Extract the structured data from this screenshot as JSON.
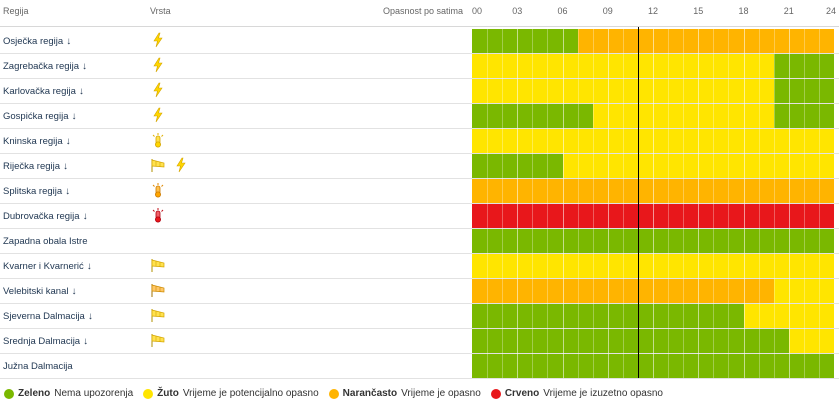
{
  "header": {
    "region_label": "Regija",
    "type_label": "Vrsta",
    "hours_label": "Opasnost po satima",
    "hours": [
      "00",
      "03",
      "06",
      "09",
      "12",
      "15",
      "18",
      "21",
      "24"
    ]
  },
  "colors": {
    "green": "#7ab800",
    "yellow": "#ffe500",
    "orange": "#ffb400",
    "red": "#e8171b"
  },
  "rows": [
    {
      "name": "Osječka regija",
      "arrow": "↓",
      "icons": [
        "lightning-icon"
      ],
      "hazard": [
        {
          "from": 0,
          "to": 7,
          "level": "green"
        },
        {
          "from": 7,
          "to": 24,
          "level": "orange"
        }
      ]
    },
    {
      "name": "Zagrebačka regija",
      "arrow": "↓",
      "icons": [
        "lightning-icon"
      ],
      "hazard": [
        {
          "from": 0,
          "to": 20,
          "level": "yellow"
        },
        {
          "from": 20,
          "to": 24,
          "level": "green"
        }
      ]
    },
    {
      "name": "Karlovačka regija",
      "arrow": "↓",
      "icons": [
        "lightning-icon"
      ],
      "hazard": [
        {
          "from": 0,
          "to": 20,
          "level": "yellow"
        },
        {
          "from": 20,
          "to": 24,
          "level": "green"
        }
      ]
    },
    {
      "name": "Gospićka regija",
      "arrow": "↓",
      "icons": [
        "lightning-icon"
      ],
      "hazard": [
        {
          "from": 0,
          "to": 8,
          "level": "green"
        },
        {
          "from": 8,
          "to": 20,
          "level": "yellow"
        },
        {
          "from": 20,
          "to": 24,
          "level": "green"
        }
      ]
    },
    {
      "name": "Kninska regija",
      "arrow": "↓",
      "icons": [
        "heat-icon"
      ],
      "hazard": [
        {
          "from": 0,
          "to": 24,
          "level": "yellow"
        }
      ]
    },
    {
      "name": "Riječka regija",
      "arrow": "↓",
      "icons": [
        "wind-icon",
        "lightning-icon"
      ],
      "hazard": [
        {
          "from": 0,
          "to": 6,
          "level": "green"
        },
        {
          "from": 6,
          "to": 24,
          "level": "yellow"
        }
      ]
    },
    {
      "name": "Splitska regija",
      "arrow": "↓",
      "icons": [
        "heat-orange-icon"
      ],
      "hazard": [
        {
          "from": 0,
          "to": 24,
          "level": "orange"
        }
      ]
    },
    {
      "name": "Dubrovačka regija",
      "arrow": "↓",
      "icons": [
        "heat-red-icon"
      ],
      "hazard": [
        {
          "from": 0,
          "to": 24,
          "level": "red"
        }
      ]
    },
    {
      "name": "Zapadna obala Istre",
      "arrow": "",
      "icons": [],
      "hazard": [
        {
          "from": 0,
          "to": 24,
          "level": "green"
        }
      ]
    },
    {
      "name": "Kvarner i Kvarnerić",
      "arrow": "↓",
      "icons": [
        "wind-icon"
      ],
      "hazard": [
        {
          "from": 0,
          "to": 24,
          "level": "yellow"
        }
      ]
    },
    {
      "name": "Velebitski kanal",
      "arrow": "↓",
      "icons": [
        "wind-orange-icon"
      ],
      "hazard": [
        {
          "from": 0,
          "to": 20,
          "level": "orange"
        },
        {
          "from": 20,
          "to": 24,
          "level": "yellow"
        }
      ]
    },
    {
      "name": "Sjeverna Dalmacija",
      "arrow": "↓",
      "icons": [
        "wind-icon"
      ],
      "hazard": [
        {
          "from": 0,
          "to": 18,
          "level": "green"
        },
        {
          "from": 18,
          "to": 24,
          "level": "yellow"
        }
      ]
    },
    {
      "name": "Srednja Dalmacija",
      "arrow": "↓",
      "icons": [
        "wind-icon"
      ],
      "hazard": [
        {
          "from": 0,
          "to": 21,
          "level": "green"
        },
        {
          "from": 21,
          "to": 24,
          "level": "yellow"
        }
      ]
    },
    {
      "name": "Južna Dalmacija",
      "arrow": "",
      "icons": [],
      "hazard": [
        {
          "from": 0,
          "to": 24,
          "level": "green"
        }
      ]
    }
  ],
  "current_hour": 11,
  "legend": [
    {
      "level": "green",
      "title": "Zeleno",
      "desc": "Nema upozorenja"
    },
    {
      "level": "yellow",
      "title": "Žuto",
      "desc": "Vrijeme je potencijalno opasno"
    },
    {
      "level": "orange",
      "title": "Narančasto",
      "desc": "Vrijeme je opasno"
    },
    {
      "level": "red",
      "title": "Crveno",
      "desc": "Vrijeme je izuzetno opasno"
    }
  ]
}
